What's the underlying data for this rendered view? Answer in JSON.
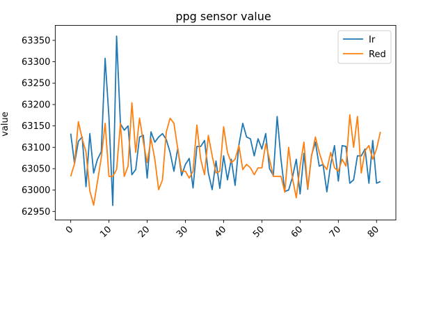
{
  "chart_data": {
    "type": "line",
    "title": "ppg sensor value",
    "xlabel": "",
    "ylabel": "value",
    "xlim": [
      -4.05,
      85.05
    ],
    "ylim": [
      62930,
      63385
    ],
    "xticks": [
      0,
      10,
      20,
      30,
      40,
      50,
      60,
      70,
      80
    ],
    "xtick_labels": [
      "0",
      "10",
      "20",
      "30",
      "40",
      "50",
      "60",
      "70",
      "80"
    ],
    "yticks": [
      62950,
      63000,
      63050,
      63100,
      63150,
      63200,
      63250,
      63300,
      63350
    ],
    "ytick_labels": [
      "62950",
      "63000",
      "63050",
      "63100",
      "63150",
      "63200",
      "63250",
      "63300",
      "63350"
    ],
    "grid": false,
    "legend_position": "top-right",
    "x": [
      0,
      1,
      2,
      3,
      4,
      5,
      6,
      7,
      8,
      9,
      10,
      11,
      12,
      13,
      14,
      15,
      16,
      17,
      18,
      19,
      20,
      21,
      22,
      23,
      24,
      25,
      26,
      27,
      28,
      29,
      30,
      31,
      32,
      33,
      34,
      35,
      36,
      37,
      38,
      39,
      40,
      41,
      42,
      43,
      44,
      45,
      46,
      47,
      48,
      49,
      50,
      51,
      52,
      53,
      54,
      55,
      56,
      57,
      58,
      59,
      60,
      61,
      62,
      63,
      64,
      65,
      66,
      67,
      68,
      69,
      70,
      71,
      72,
      73,
      74,
      75,
      76,
      77,
      78,
      79,
      80,
      81
    ],
    "series": [
      {
        "name": "Ir",
        "color": "#1f77b4",
        "values": [
          63132,
          63062,
          63114,
          63124,
          63008,
          63132,
          63040,
          63072,
          63090,
          63308,
          63170,
          62964,
          63360,
          63155,
          63140,
          63150,
          63036,
          63048,
          63124,
          63128,
          63028,
          63136,
          63112,
          63124,
          63132,
          63118,
          63088,
          63044,
          63098,
          63034,
          63060,
          63074,
          63005,
          63102,
          63102,
          63116,
          63040,
          63001,
          63068,
          63004,
          63080,
          63024,
          63072,
          63011,
          63106,
          63156,
          63124,
          63120,
          63080,
          63120,
          63096,
          63132,
          63050,
          63034,
          63172,
          63072,
          62997,
          63000,
          63030,
          63072,
          62991,
          63086,
          63002,
          63082,
          63112,
          63056,
          63060,
          62996,
          63060,
          63104,
          63021,
          63104,
          63102,
          63016,
          63024,
          63080,
          63080,
          63096,
          63016,
          63116,
          63016,
          63020
        ]
      },
      {
        "name": "Red",
        "color": "#ff7f0e",
        "values": [
          63032,
          63062,
          63160,
          63120,
          63089,
          62998,
          62965,
          63020,
          63076,
          63156,
          63032,
          63032,
          63048,
          63156,
          63032,
          63056,
          63204,
          63088,
          63168,
          63112,
          63064,
          63120,
          63072,
          63001,
          63024,
          63136,
          63168,
          63156,
          63096,
          63044,
          63044,
          63028,
          63044,
          63152,
          63072,
          63036,
          63128,
          63080,
          63040,
          63044,
          63148,
          63088,
          63064,
          63072,
          63104,
          63048,
          63060,
          63052,
          63036,
          63052,
          63052,
          63108,
          63072,
          63032,
          63032,
          63032,
          62995,
          63100,
          63028,
          62982,
          63056,
          63112,
          63004,
          63080,
          63124,
          63088,
          63060,
          63048,
          63088,
          63052,
          63044,
          63072,
          63056,
          63176,
          63100,
          63172,
          63040,
          63092,
          63104,
          63072,
          63096,
          63136
        ]
      }
    ]
  }
}
